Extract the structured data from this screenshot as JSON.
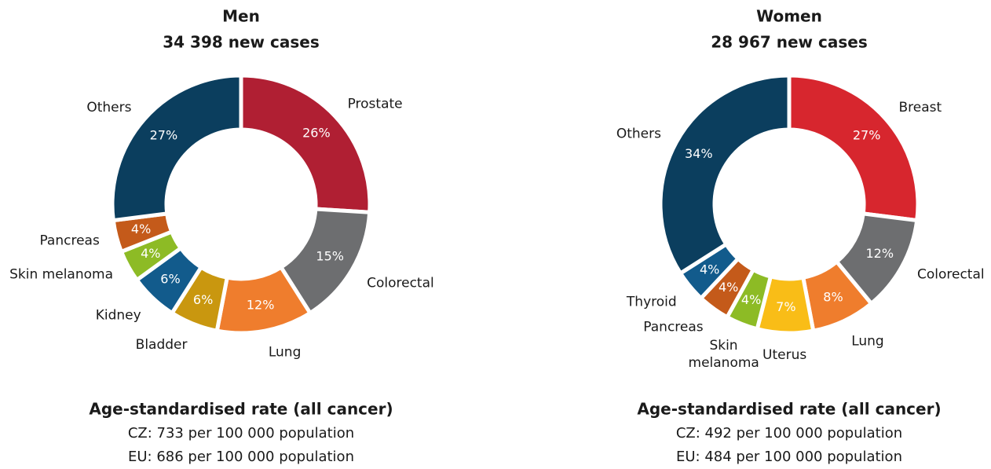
{
  "chart_data": [
    {
      "type": "donut",
      "title": [
        "Men",
        "34 398 new cases"
      ],
      "categories": [
        "Prostate",
        "Colorectal",
        "Lung",
        "Bladder",
        "Kidney",
        "Skin melanoma",
        "Pancreas",
        "Others"
      ],
      "values": [
        26,
        15,
        12,
        6,
        6,
        4,
        4,
        27
      ],
      "value_labels": [
        "26%",
        "15%",
        "12%",
        "6%",
        "6%",
        "4%",
        "4%",
        "27%"
      ],
      "colors": [
        "#b01f33",
        "#6d6e70",
        "#ef7d2d",
        "#c9970f",
        "#125b8c",
        "#8dbb25",
        "#c45a1a",
        "#0b3e5e"
      ],
      "notes": [
        "Age-standardised rate (all cancer)",
        "CZ: 733 per 100 000 population",
        "EU: 686 per 100 000 population"
      ]
    },
    {
      "type": "donut",
      "title": [
        "Women",
        "28 967 new cases"
      ],
      "categories": [
        "Breast",
        "Colorectal",
        "Lung",
        "Uterus",
        "Skin melanoma",
        "Pancreas",
        "Thyroid",
        "Others"
      ],
      "values": [
        27,
        12,
        8,
        7,
        4,
        4,
        4,
        34
      ],
      "value_labels": [
        "27%",
        "12%",
        "8%",
        "7%",
        "4%",
        "4%",
        "4%",
        "34%"
      ],
      "colors": [
        "#d7262e",
        "#6d6e70",
        "#ef7d2d",
        "#f9bd17",
        "#8dbb25",
        "#c45a1a",
        "#125b8c",
        "#0b3e5e"
      ],
      "notes": [
        "Age-standardised rate (all cancer)",
        "CZ: 492 per 100 000 population",
        "EU: 484 per 100 000 population"
      ]
    }
  ]
}
